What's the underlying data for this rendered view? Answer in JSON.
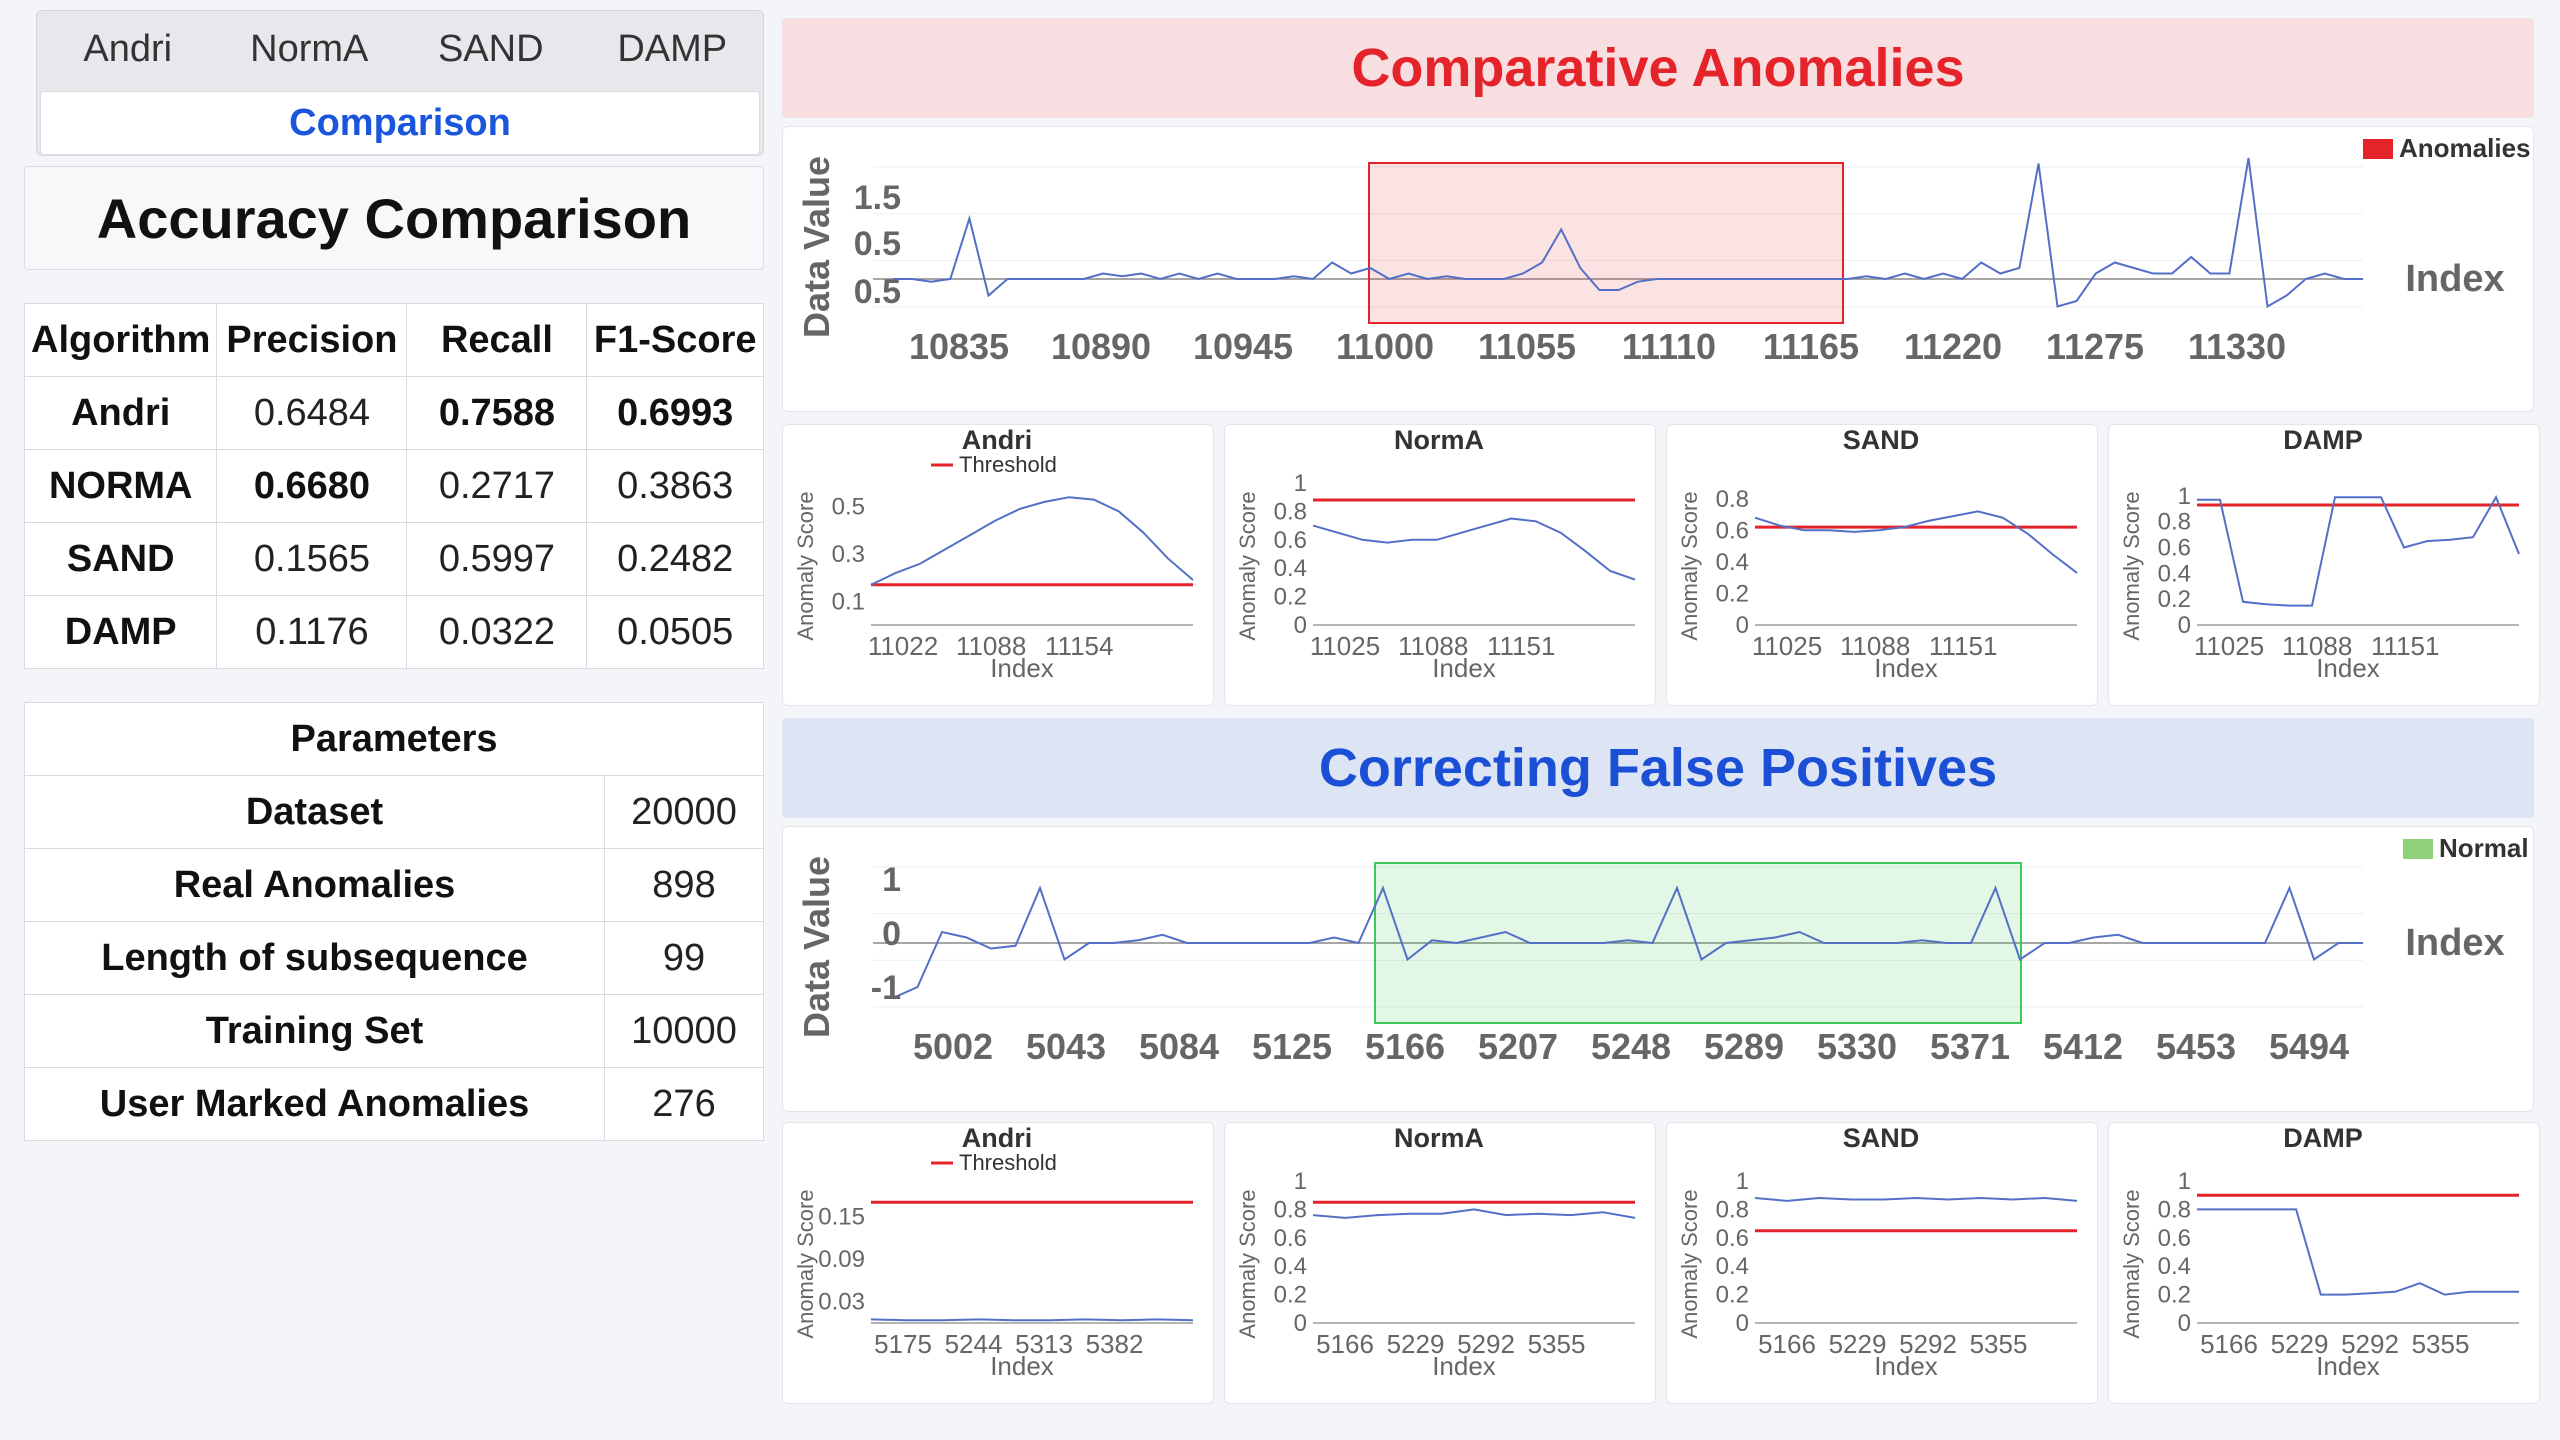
{
  "tabs": {
    "items": [
      "Andri",
      "NormA",
      "SAND",
      "DAMP"
    ],
    "active": "Comparison"
  },
  "accuracy": {
    "title": "Accuracy Comparison",
    "headers": [
      "Algorithm",
      "Precision",
      "Recall",
      "F1-Score"
    ],
    "rows": [
      [
        "Andri",
        "0.6484",
        "0.7588",
        "0.6993"
      ],
      [
        "NORMA",
        "0.6680",
        "0.2717",
        "0.3863"
      ],
      [
        "SAND",
        "0.1565",
        "0.5997",
        "0.2482"
      ],
      [
        "DAMP",
        "0.1176",
        "0.0322",
        "0.0505"
      ]
    ]
  },
  "parameters": {
    "title": "Parameters",
    "rows": [
      [
        "Dataset",
        "20000"
      ],
      [
        "Real Anomalies",
        "898"
      ],
      [
        "Length of subsequence",
        "99"
      ],
      [
        "Training Set",
        "10000"
      ],
      [
        "User Marked Anomalies",
        "276"
      ]
    ]
  },
  "section1": {
    "title": "Comparative Anomalies"
  },
  "section2": {
    "title": "Correcting False Positives"
  },
  "colors": {
    "red": "#e5232a",
    "blue": "#1a4fd6",
    "line": "#5470c6",
    "anomaly_box": "#e5232a",
    "normal_box": "#3cc85a"
  },
  "chart_data": [
    {
      "type": "line",
      "ylabel": "Data Value",
      "xlabel": "Index",
      "x_ticks": [
        "10835",
        "10890",
        "10945",
        "11000",
        "11055",
        "11110",
        "11165",
        "11220",
        "11275",
        "11330"
      ],
      "y_ticks": [
        "1.5",
        "0.5",
        "0.5"
      ],
      "legend": "Anomalies",
      "highlight_range": [
        11000,
        11200
      ],
      "series": [
        {
          "values": [
            0,
            0,
            -0.05,
            0,
            1.1,
            -0.3,
            0,
            0,
            0,
            0,
            0,
            0.1,
            0.05,
            0.1,
            0,
            0.1,
            0,
            0.1,
            0,
            0,
            0,
            0.05,
            0,
            0.3,
            0.1,
            0.2,
            0,
            0.1,
            0,
            0.05,
            0,
            0,
            0,
            0.1,
            0.3,
            0.9,
            0.2,
            -0.2,
            -0.2,
            -0.05,
            0,
            0,
            0,
            0,
            0,
            0,
            0,
            0,
            0,
            0,
            0,
            0.05,
            0,
            0.1,
            0,
            0.1,
            0,
            0.3,
            0.1,
            0.2,
            2.1,
            -0.5,
            -0.4,
            0.1,
            0.3,
            0.2,
            0.1,
            0.1,
            0.4,
            0.1,
            0.1,
            2.2,
            -0.5,
            -0.3,
            0,
            0.1,
            0,
            0
          ]
        }
      ]
    },
    {
      "type": "line",
      "title": "Andri",
      "legend": "Threshold",
      "ylabel": "Anomaly Score",
      "xlabel": "Index",
      "x_ticks": [
        "11022",
        "11088",
        "11154"
      ],
      "y_ticks": [
        "0.5",
        "0.3",
        "0.1"
      ],
      "ylim": [
        0,
        0.6
      ],
      "threshold": 0.17,
      "values": [
        0.17,
        0.22,
        0.26,
        0.32,
        0.38,
        0.44,
        0.49,
        0.52,
        0.54,
        0.53,
        0.48,
        0.39,
        0.28,
        0.19
      ]
    },
    {
      "type": "line",
      "title": "NormA",
      "ylabel": "Anomaly Score",
      "xlabel": "Index",
      "x_ticks": [
        "11025",
        "11088",
        "11151"
      ],
      "y_ticks": [
        "1",
        "0.8",
        "0.6",
        "0.4",
        "0.2",
        "0"
      ],
      "ylim": [
        0,
        1
      ],
      "threshold": 0.88,
      "values": [
        0.7,
        0.65,
        0.6,
        0.58,
        0.6,
        0.6,
        0.65,
        0.7,
        0.75,
        0.73,
        0.65,
        0.52,
        0.38,
        0.32
      ]
    },
    {
      "type": "line",
      "title": "SAND",
      "ylabel": "Anomaly Score",
      "xlabel": "Index",
      "x_ticks": [
        "11025",
        "11088",
        "11151"
      ],
      "y_ticks": [
        "0.8",
        "0.6",
        "0.4",
        "0.2",
        "0"
      ],
      "ylim": [
        0,
        0.9
      ],
      "threshold": 0.62,
      "values": [
        0.68,
        0.63,
        0.6,
        0.6,
        0.59,
        0.6,
        0.62,
        0.66,
        0.69,
        0.72,
        0.68,
        0.58,
        0.45,
        0.33
      ]
    },
    {
      "type": "line",
      "title": "DAMP",
      "ylabel": "Anomaly Score",
      "xlabel": "Index",
      "x_ticks": [
        "11025",
        "11088",
        "11151"
      ],
      "y_ticks": [
        "1",
        "0.8",
        "0.6",
        "0.4",
        "0.2",
        "0"
      ],
      "ylim": [
        0,
        1.1
      ],
      "threshold": 0.93,
      "values": [
        0.97,
        0.97,
        0.18,
        0.16,
        0.15,
        0.15,
        0.99,
        0.99,
        0.99,
        0.6,
        0.65,
        0.66,
        0.68,
        0.99,
        0.55
      ]
    },
    {
      "type": "line",
      "ylabel": "Data Value",
      "xlabel": "Index",
      "x_ticks": [
        "5002",
        "5043",
        "5084",
        "5125",
        "5166",
        "5207",
        "5248",
        "5289",
        "5330",
        "5371",
        "5412",
        "5453",
        "5494"
      ],
      "y_ticks": [
        "1",
        "0",
        "-1"
      ],
      "legend": "Normal",
      "highlight_range": [
        5166,
        5412
      ],
      "series": [
        {
          "values": [
            -1,
            -0.8,
            0.2,
            0.1,
            -0.1,
            -0.05,
            1.0,
            -0.3,
            0,
            0,
            0.05,
            0.15,
            0,
            0,
            0,
            0,
            0,
            0,
            0.1,
            0,
            1.0,
            -0.3,
            0.05,
            0,
            0.1,
            0.2,
            0,
            0,
            0,
            0,
            0.05,
            0,
            1.0,
            -0.3,
            0,
            0.05,
            0.1,
            0.2,
            0,
            0,
            0,
            0,
            0.05,
            0,
            0,
            1.0,
            -0.3,
            0,
            0,
            0.1,
            0.15,
            0,
            0,
            0,
            0,
            0,
            0,
            1.0,
            -0.3,
            0,
            0
          ]
        }
      ]
    },
    {
      "type": "line",
      "title": "Andri",
      "legend": "Threshold",
      "ylabel": "Anomaly Score",
      "xlabel": "Index",
      "x_ticks": [
        "5175",
        "5244",
        "5313",
        "5382"
      ],
      "y_ticks": [
        "0.15",
        "0.09",
        "0.03"
      ],
      "ylim": [
        0,
        0.2
      ],
      "threshold": 0.17,
      "values": [
        0.005,
        0.004,
        0.004,
        0.005,
        0.004,
        0.004,
        0.005,
        0.004,
        0.005,
        0.004
      ]
    },
    {
      "type": "line",
      "title": "NormA",
      "ylabel": "Anomaly Score",
      "xlabel": "Index",
      "x_ticks": [
        "5166",
        "5229",
        "5292",
        "5355"
      ],
      "y_ticks": [
        "1",
        "0.8",
        "0.6",
        "0.4",
        "0.2",
        "0"
      ],
      "ylim": [
        0,
        1
      ],
      "threshold": 0.85,
      "values": [
        0.76,
        0.74,
        0.76,
        0.77,
        0.77,
        0.8,
        0.76,
        0.77,
        0.76,
        0.78,
        0.74
      ]
    },
    {
      "type": "line",
      "title": "SAND",
      "ylabel": "Anomaly Score",
      "xlabel": "Index",
      "x_ticks": [
        "5166",
        "5229",
        "5292",
        "5355"
      ],
      "y_ticks": [
        "1",
        "0.8",
        "0.6",
        "0.4",
        "0.2",
        "0"
      ],
      "ylim": [
        0,
        1
      ],
      "threshold": 0.65,
      "values": [
        0.88,
        0.86,
        0.88,
        0.87,
        0.87,
        0.88,
        0.87,
        0.88,
        0.87,
        0.88,
        0.86
      ]
    },
    {
      "type": "line",
      "title": "DAMP",
      "ylabel": "Anomaly Score",
      "xlabel": "Index",
      "x_ticks": [
        "5166",
        "5229",
        "5292",
        "5355"
      ],
      "y_ticks": [
        "1",
        "0.8",
        "0.6",
        "0.4",
        "0.2",
        "0"
      ],
      "ylim": [
        0,
        1
      ],
      "threshold": 0.9,
      "values": [
        0.8,
        0.8,
        0.8,
        0.8,
        0.8,
        0.2,
        0.2,
        0.21,
        0.22,
        0.28,
        0.2,
        0.22,
        0.22,
        0.22
      ]
    }
  ]
}
